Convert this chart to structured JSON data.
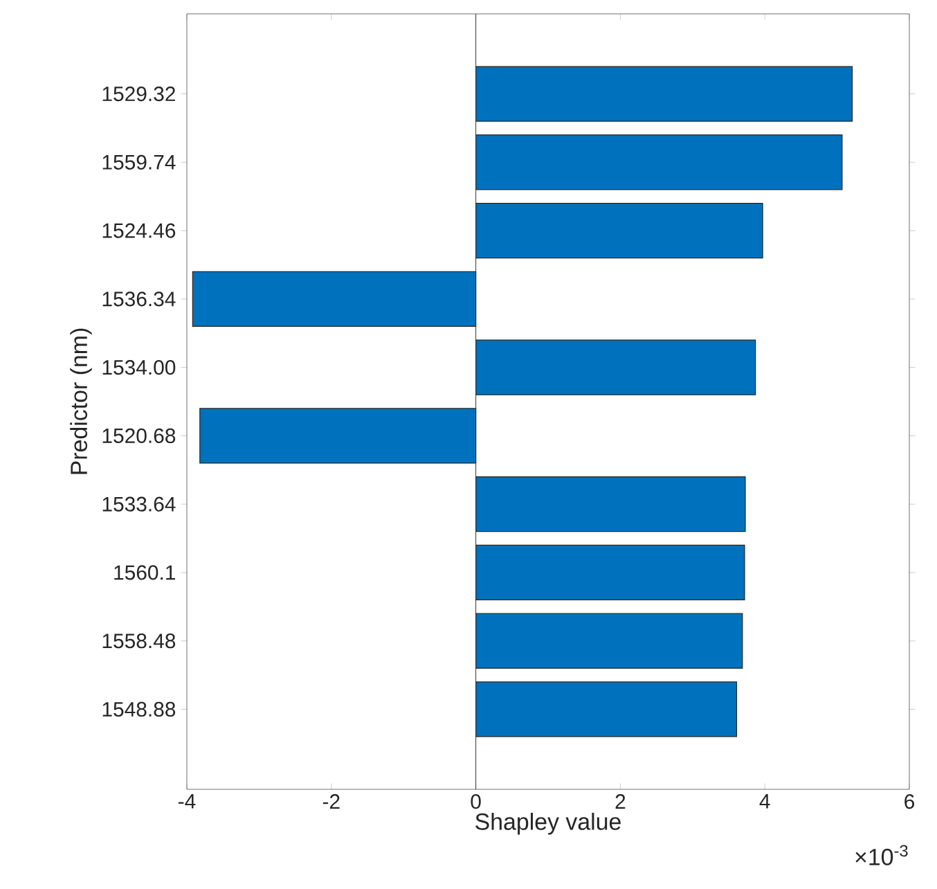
{
  "chart_data": {
    "type": "bar",
    "orientation": "horizontal",
    "xlabel": "Shapley value",
    "ylabel": "Predictor (nm)",
    "categories": [
      "1529.32",
      "1559.74",
      "1524.46",
      "1536.34",
      "1534.00",
      "1520.68",
      "1533.64",
      "1560.1",
      "1558.48",
      "1548.88"
    ],
    "values": [
      5.21,
      5.07,
      3.97,
      -3.92,
      3.87,
      -3.82,
      3.73,
      3.72,
      3.69,
      3.61
    ],
    "color": "#0072bd",
    "xlim": [
      -4,
      6
    ],
    "xticks": [
      -4,
      -2,
      0,
      2,
      4,
      6
    ],
    "annotations": [
      "×10$^{-3}$"
    ],
    "ref_lines": [
      {
        "axis": "x",
        "value": 0
      }
    ],
    "grid": false
  }
}
